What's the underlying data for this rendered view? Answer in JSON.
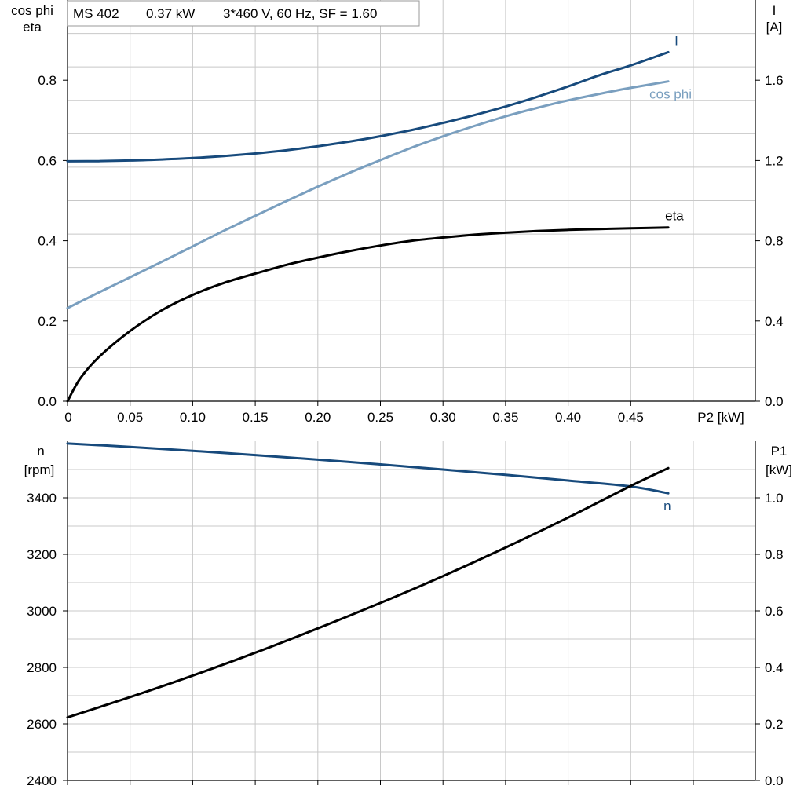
{
  "info_box": {
    "model": "MS 402",
    "rated_power": "0.37 kW",
    "specs": "3*460 V, 60 Hz, SF = 1.60"
  },
  "chart_data": [
    {
      "type": "line",
      "id": "top",
      "x_ticks": [
        "0",
        "0.05",
        "0.10",
        "0.15",
        "0.20",
        "0.25",
        "0.30",
        "0.35",
        "0.40",
        "0.45"
      ],
      "x_label": "P2 [kW]",
      "xlim": [
        0,
        0.55
      ],
      "left_axis": {
        "label_lines": [
          "cos phi",
          "eta"
        ],
        "ylim": [
          0,
          1.0
        ],
        "ticks": [
          "0.0",
          "0.2",
          "0.4",
          "0.6",
          "0.8"
        ]
      },
      "right_axis": {
        "label_lines": [
          "I",
          "[A]"
        ],
        "ylim": [
          0,
          2.0
        ],
        "ticks": [
          "0.0",
          "0.4",
          "0.8",
          "1.2",
          "1.6"
        ]
      },
      "grid": true,
      "series": [
        {
          "name": "I",
          "axis": "right",
          "color": "#174a7c",
          "x": [
            0,
            0.025,
            0.05,
            0.075,
            0.1,
            0.125,
            0.15,
            0.175,
            0.2,
            0.225,
            0.25,
            0.275,
            0.3,
            0.325,
            0.35,
            0.375,
            0.4,
            0.425,
            0.45,
            0.48
          ],
          "y": [
            1.196,
            1.197,
            1.2,
            1.205,
            1.212,
            1.222,
            1.235,
            1.251,
            1.271,
            1.294,
            1.321,
            1.352,
            1.387,
            1.426,
            1.469,
            1.517,
            1.569,
            1.625,
            1.674,
            1.74
          ]
        },
        {
          "name": "cos phi",
          "axis": "left",
          "color": "#7a9fbf",
          "x": [
            0,
            0.025,
            0.05,
            0.075,
            0.1,
            0.125,
            0.15,
            0.175,
            0.2,
            0.225,
            0.25,
            0.275,
            0.3,
            0.325,
            0.35,
            0.375,
            0.4,
            0.425,
            0.45,
            0.48
          ],
          "y": [
            0.232,
            0.271,
            0.309,
            0.347,
            0.386,
            0.425,
            0.462,
            0.499,
            0.535,
            0.569,
            0.601,
            0.632,
            0.66,
            0.686,
            0.71,
            0.731,
            0.75,
            0.766,
            0.781,
            0.797
          ]
        },
        {
          "name": "eta",
          "axis": "left",
          "color": "#000000",
          "x": [
            0,
            0.01,
            0.025,
            0.05,
            0.075,
            0.1,
            0.125,
            0.15,
            0.175,
            0.2,
            0.225,
            0.25,
            0.275,
            0.3,
            0.325,
            0.35,
            0.375,
            0.4,
            0.425,
            0.45,
            0.48
          ],
          "y": [
            0,
            0.056,
            0.11,
            0.175,
            0.226,
            0.265,
            0.295,
            0.318,
            0.34,
            0.358,
            0.374,
            0.388,
            0.4,
            0.408,
            0.415,
            0.42,
            0.424,
            0.427,
            0.429,
            0.431,
            0.433
          ]
        }
      ]
    },
    {
      "type": "line",
      "id": "bottom",
      "xlim": [
        0,
        0.55
      ],
      "left_axis": {
        "label_lines": [
          "n",
          "[rpm]"
        ],
        "ylim": [
          2400,
          3600
        ],
        "ticks": [
          "2400",
          "2600",
          "2800",
          "3000",
          "3200",
          "3400"
        ]
      },
      "right_axis": {
        "label_lines": [
          "P1",
          "[kW]"
        ],
        "ylim": [
          0,
          1.2
        ],
        "ticks": [
          "0.0",
          "0.2",
          "0.4",
          "0.6",
          "0.8",
          "1.0"
        ]
      },
      "grid": true,
      "series": [
        {
          "name": "n",
          "axis": "left",
          "color": "#174a7c",
          "x": [
            0,
            0.05,
            0.1,
            0.15,
            0.2,
            0.25,
            0.3,
            0.35,
            0.4,
            0.45,
            0.48
          ],
          "y": [
            3592,
            3580,
            3566,
            3551,
            3535,
            3518,
            3500,
            3481,
            3461,
            3440,
            3416
          ]
        },
        {
          "name": "P1",
          "axis": "right",
          "color": "#000000",
          "x": [
            0,
            0.05,
            0.1,
            0.15,
            0.2,
            0.25,
            0.3,
            0.35,
            0.4,
            0.45,
            0.48
          ],
          "y": [
            0.223,
            0.295,
            0.371,
            0.452,
            0.538,
            0.628,
            0.723,
            0.824,
            0.93,
            1.042,
            1.105
          ]
        }
      ]
    }
  ]
}
